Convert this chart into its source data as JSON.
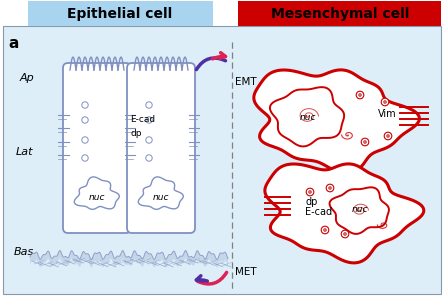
{
  "epithelial_label": "Epithelial cell",
  "mesenchymal_label": "Mesenchymal cell",
  "epi_box_color": "#a8d4f0",
  "mesen_box_color": "#cc0000",
  "cell_blue": "#8090c0",
  "mesen_red": "#cc0000",
  "bg_color": "#ddeef8",
  "purple_dark": "#5030a0",
  "pink_red": "#dd2255",
  "ap_label": "Ap",
  "lat_label": "Lat",
  "bas_label": "Bas",
  "emt_label": "EMT",
  "met_label": "MET",
  "ecad_label": "E-cad",
  "dp_label": "dp",
  "nuc_label": "nuc",
  "vim_label": "Vim",
  "a_label": "a"
}
